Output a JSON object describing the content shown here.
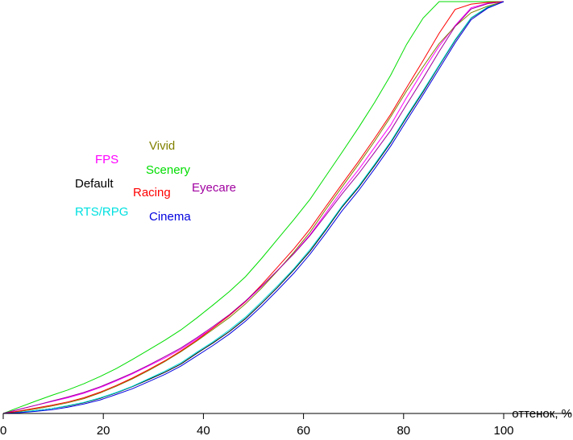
{
  "chart_data": {
    "type": "line",
    "xlabel": "оттенок, %",
    "ylabel": "",
    "xlim": [
      0,
      100
    ],
    "ylim": [
      0,
      100
    ],
    "x_ticks": [
      "0",
      "20",
      "40",
      "60",
      "80",
      "100"
    ],
    "grid": false,
    "legend_placement": "inline labels, upper-left area",
    "x": [
      0,
      3.2,
      6.5,
      9.7,
      12.9,
      16.1,
      19.4,
      22.6,
      25.8,
      29.0,
      32.3,
      35.5,
      38.7,
      41.9,
      45.2,
      48.4,
      51.6,
      54.8,
      58.1,
      61.3,
      64.5,
      67.7,
      71.0,
      74.2,
      77.4,
      80.6,
      83.9,
      87.1,
      90.3,
      93.5,
      96.8,
      100
    ],
    "series": [
      {
        "name": "Default",
        "color": "#000000",
        "values": [
          0,
          0.3,
          0.7,
          1.2,
          1.8,
          2.6,
          3.7,
          5.0,
          6.5,
          8.2,
          10.0,
          12.0,
          14.6,
          17.1,
          19.9,
          23.0,
          26.7,
          30.6,
          34.9,
          39.4,
          44.6,
          50.1,
          54.9,
          60.2,
          65.7,
          71.9,
          78.1,
          84.4,
          90.6,
          96.0,
          98.6,
          100
        ]
      },
      {
        "name": "RTS/RPG",
        "color": "#00e0e0",
        "values": [
          0,
          0.3,
          0.7,
          1.2,
          1.9,
          2.7,
          3.8,
          5.1,
          6.6,
          8.4,
          10.3,
          12.3,
          14.9,
          17.4,
          20.3,
          23.4,
          27.1,
          31.0,
          35.2,
          39.8,
          44.9,
          50.4,
          55.2,
          60.5,
          66.0,
          72.2,
          78.4,
          84.6,
          90.8,
          96.1,
          98.7,
          100
        ]
      },
      {
        "name": "FPS",
        "color": "#ff00ff",
        "values": [
          0,
          1.0,
          2.0,
          2.9,
          3.8,
          4.9,
          6.3,
          7.9,
          9.6,
          11.5,
          13.5,
          15.6,
          18.1,
          20.8,
          23.8,
          27.1,
          30.8,
          34.7,
          38.9,
          43.4,
          48.7,
          54.1,
          59.2,
          64.6,
          70.0,
          76.7,
          83.2,
          89.2,
          94.2,
          98.5,
          99.6,
          100
        ]
      },
      {
        "name": "Vivid",
        "color": "#808000",
        "values": [
          0,
          0.5,
          1.1,
          1.8,
          2.6,
          3.6,
          5.0,
          6.6,
          8.4,
          10.4,
          12.6,
          15.0,
          17.6,
          20.4,
          23.3,
          26.6,
          30.4,
          34.6,
          39.2,
          44.0,
          49.6,
          55.0,
          60.5,
          66.1,
          72.0,
          78.3,
          84.2,
          89.8,
          94.0,
          97.3,
          98.9,
          100
        ]
      },
      {
        "name": "Scenery",
        "color": "#00dd00",
        "values": [
          0,
          1.5,
          3.0,
          4.4,
          5.7,
          7.2,
          9.0,
          10.9,
          13.1,
          15.4,
          17.8,
          20.3,
          23.2,
          26.3,
          29.6,
          33.2,
          37.6,
          42.3,
          47.1,
          52.0,
          57.7,
          63.4,
          69.4,
          75.5,
          82.1,
          89.6,
          96.0,
          100,
          100,
          100,
          100,
          100
        ]
      },
      {
        "name": "Racing",
        "color": "#ff0000",
        "values": [
          0,
          0.6,
          1.3,
          2.0,
          2.8,
          3.8,
          5.2,
          6.8,
          8.6,
          10.6,
          12.8,
          15.2,
          17.8,
          20.7,
          23.8,
          27.2,
          31.2,
          35.5,
          40.0,
          44.8,
          50.3,
          55.7,
          61.2,
          66.8,
          72.6,
          79.1,
          85.7,
          92.3,
          98.1,
          99.4,
          99.8,
          100
        ]
      },
      {
        "name": "Eyecare",
        "color": "#a000a0",
        "values": [
          0,
          1.0,
          2.0,
          3.0,
          4.0,
          5.1,
          6.5,
          8.1,
          9.8,
          11.7,
          13.8,
          15.9,
          18.4,
          21.1,
          24.0,
          27.3,
          30.9,
          34.7,
          38.8,
          43.2,
          48.2,
          53.3,
          58.2,
          63.4,
          68.7,
          75.0,
          81.4,
          87.9,
          94.0,
          98.2,
          99.5,
          100
        ]
      },
      {
        "name": "Cinema",
        "color": "#0000e0",
        "values": [
          0,
          0.2,
          0.5,
          0.9,
          1.5,
          2.3,
          3.3,
          4.6,
          6.0,
          7.7,
          9.5,
          11.5,
          14.0,
          16.5,
          19.3,
          22.4,
          26.0,
          29.9,
          34.1,
          38.7,
          43.8,
          49.2,
          54.1,
          59.4,
          64.9,
          71.1,
          77.4,
          83.7,
          90.0,
          95.6,
          98.4,
          100
        ]
      }
    ],
    "labels": [
      {
        "series": "FPS",
        "text": "FPS",
        "color": "#ff00ff"
      },
      {
        "series": "Vivid",
        "text": "Vivid",
        "color": "#808000"
      },
      {
        "series": "Default",
        "text": "Default",
        "color": "#000000"
      },
      {
        "series": "Scenery",
        "text": "Scenery",
        "color": "#00dd00"
      },
      {
        "series": "Racing",
        "text": "Racing",
        "color": "#ff0000"
      },
      {
        "series": "Eyecare",
        "text": "Eyecare",
        "color": "#a000a0"
      },
      {
        "series": "RTS/RPG",
        "text": "RTS/RPG",
        "color": "#00e0e0"
      },
      {
        "series": "Cinema",
        "text": "Cinema",
        "color": "#0000e0"
      }
    ]
  }
}
